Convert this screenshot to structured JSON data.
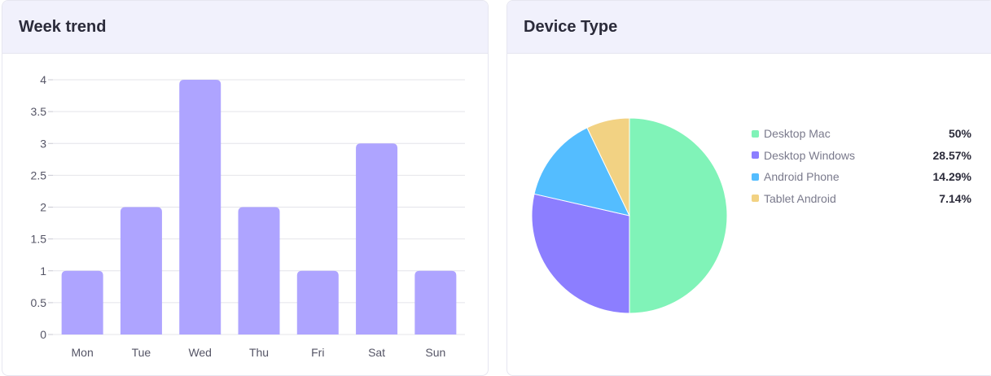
{
  "cards": {
    "week": {
      "title": "Week trend"
    },
    "device": {
      "title": "Device Type"
    }
  },
  "chart_data": [
    {
      "type": "bar",
      "title": "Week trend",
      "categories": [
        "Mon",
        "Tue",
        "Wed",
        "Thu",
        "Fri",
        "Sat",
        "Sun"
      ],
      "values": [
        1,
        2,
        4,
        2,
        1,
        3,
        1
      ],
      "ylim": [
        0,
        4
      ],
      "yticks": [
        "0",
        "0.5",
        "1",
        "1.5",
        "2",
        "2.5",
        "3",
        "3.5",
        "4"
      ],
      "grid": true,
      "colors": {
        "bar": "#aea4ff"
      }
    },
    {
      "type": "pie",
      "title": "Device Type",
      "legend_position": "right",
      "slices": [
        {
          "label": "Desktop Mac",
          "value": 50,
          "display": "50%",
          "color": "#80f3b8"
        },
        {
          "label": "Desktop Windows",
          "value": 28.57,
          "display": "28.57%",
          "color": "#8c7eff"
        },
        {
          "label": "Android Phone",
          "value": 14.29,
          "display": "14.29%",
          "color": "#54bdff"
        },
        {
          "label": "Tablet Android",
          "value": 7.14,
          "display": "7.14%",
          "color": "#f2d283"
        }
      ]
    }
  ]
}
